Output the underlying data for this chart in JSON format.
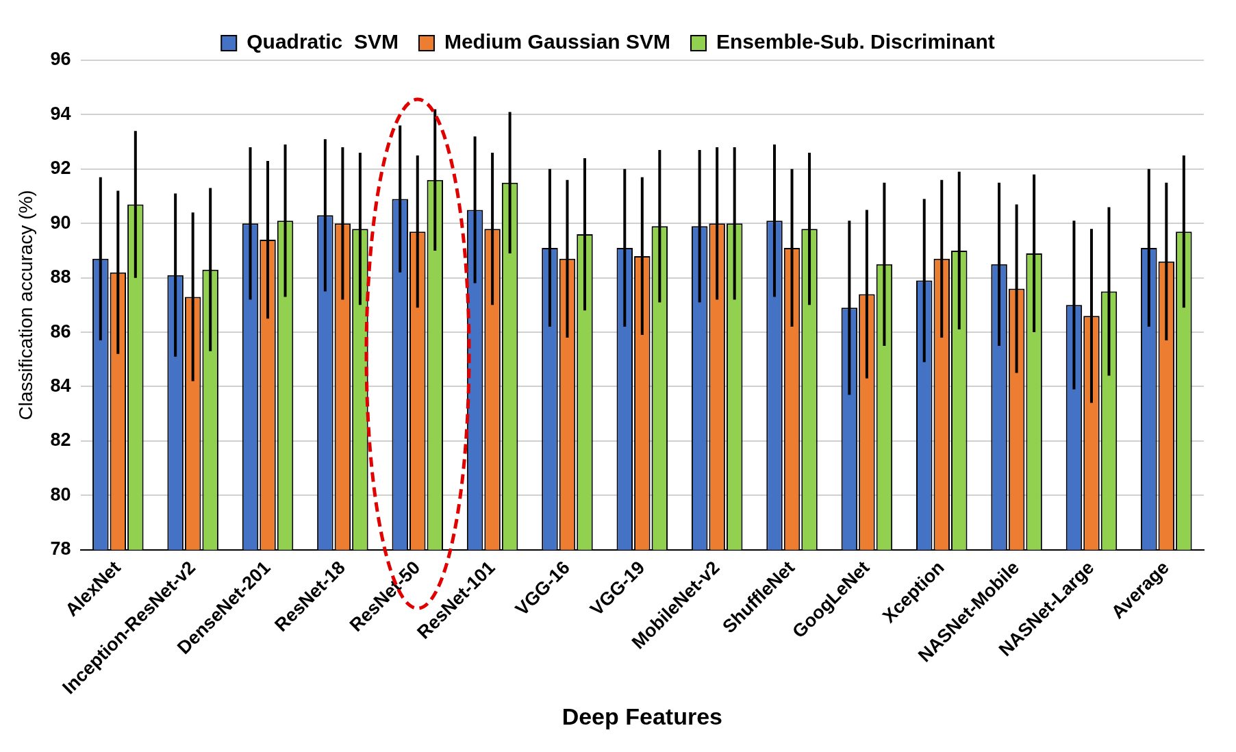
{
  "chart_data": {
    "type": "bar",
    "xlabel": "Deep Features",
    "ylabel": "Classification accuracy (%)",
    "categories": [
      "AlexNet",
      "Inception-ResNet-v2",
      "DenseNet-201",
      "ResNet-18",
      "ResNet-50",
      "ResNet-101",
      "VGG-16",
      "VGG-19",
      "MobileNet-v2",
      "ShuffleNet",
      "GoogLeNet",
      "Xception",
      "NASNet-Mobile",
      "NASNet-Large",
      "Average"
    ],
    "series": [
      {
        "name": "Quadratic  SVM",
        "color": "#4472c4",
        "values": [
          88.7,
          88.1,
          90.0,
          90.3,
          90.9,
          90.5,
          89.1,
          89.1,
          89.9,
          90.1,
          86.9,
          87.9,
          88.5,
          87.0,
          89.1
        ],
        "errors": [
          3.0,
          3.0,
          2.8,
          2.8,
          2.7,
          2.7,
          2.9,
          2.9,
          2.8,
          2.8,
          3.2,
          3.0,
          3.0,
          3.1,
          2.9
        ]
      },
      {
        "name": "Medium Gaussian SVM",
        "color": "#ed7d31",
        "values": [
          88.2,
          87.3,
          89.4,
          90.0,
          89.7,
          89.8,
          88.7,
          88.8,
          90.0,
          89.1,
          87.4,
          88.7,
          87.6,
          86.6,
          88.6
        ],
        "errors": [
          3.0,
          3.1,
          2.9,
          2.8,
          2.8,
          2.8,
          2.9,
          2.9,
          2.8,
          2.9,
          3.1,
          2.9,
          3.1,
          3.2,
          2.9
        ]
      },
      {
        "name": "Ensemble-Sub. Discriminant",
        "color": "#92d050",
        "values": [
          90.7,
          88.3,
          90.1,
          89.8,
          91.6,
          91.5,
          89.6,
          89.9,
          90.0,
          89.8,
          88.5,
          89.0,
          88.9,
          87.5,
          89.7
        ],
        "errors": [
          2.7,
          3.0,
          2.8,
          2.8,
          2.6,
          2.6,
          2.8,
          2.8,
          2.8,
          2.8,
          3.0,
          2.9,
          2.9,
          3.1,
          2.8
        ]
      }
    ],
    "ylim": [
      78,
      96
    ],
    "yticks": [
      78,
      80,
      82,
      84,
      86,
      88,
      90,
      92,
      94,
      96
    ],
    "grid": "y",
    "legend": "top"
  }
}
